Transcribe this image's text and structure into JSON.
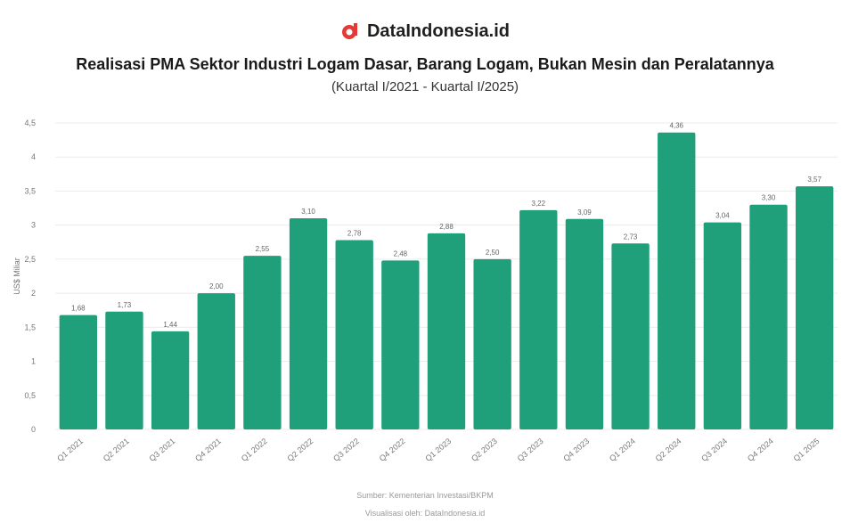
{
  "brand": {
    "name": "DataIndonesia.id",
    "logo_icon": "data-indonesia-logo-icon",
    "logo_color": "#e53935"
  },
  "header": {
    "title": "Realisasi PMA Sektor Industri Logam Dasar, Barang Logam, Bukan Mesin dan Peralatannya",
    "subtitle": "(Kuartal I/2021 - Kuartal I/2025)"
  },
  "footer": {
    "source": "Sumber: Kementerian Investasi/BKPM",
    "note": "Visualisasi oleh: DataIndonesia.id"
  },
  "colors": {
    "bar": "#1fa07a",
    "grid": "#ececec"
  },
  "chart_data": {
    "type": "bar",
    "title": "Realisasi PMA Sektor Industri Logam Dasar, Barang Logam, Bukan Mesin dan Peralatannya",
    "subtitle": "(Kuartal I/2021 - Kuartal I/2025)",
    "ylabel": "US$ Miliar",
    "xlabel": "",
    "ylim": [
      0,
      4.5
    ],
    "yticks": [
      0,
      0.5,
      1,
      1.5,
      2,
      2.5,
      3,
      3.5,
      4,
      4.5
    ],
    "ytick_labels": [
      "0",
      "0,5",
      "1",
      "1,5",
      "2",
      "2,5",
      "3",
      "3,5",
      "4",
      "4,5"
    ],
    "grid": true,
    "categories": [
      "Q1 2021",
      "Q2 2021",
      "Q3 2021",
      "Q4 2021",
      "Q1 2022",
      "Q2 2022",
      "Q3 2022",
      "Q4 2022",
      "Q1 2023",
      "Q2 2023",
      "Q3 2023",
      "Q4 2023",
      "Q1 2024",
      "Q2 2024",
      "Q3 2024",
      "Q4 2024",
      "Q1 2025"
    ],
    "values": [
      1.68,
      1.73,
      1.44,
      2.0,
      2.55,
      3.1,
      2.78,
      2.48,
      2.88,
      2.5,
      3.22,
      3.09,
      2.73,
      4.36,
      3.04,
      3.3,
      3.57
    ],
    "data_labels": [
      "1,68",
      "1,73",
      "1,44",
      "2,00",
      "2,55",
      "3,10",
      "2,78",
      "2,48",
      "2,88",
      "2,50",
      "3,22",
      "3,09",
      "2,73",
      "4,36",
      "3,04",
      "3,30",
      "3,57"
    ]
  }
}
